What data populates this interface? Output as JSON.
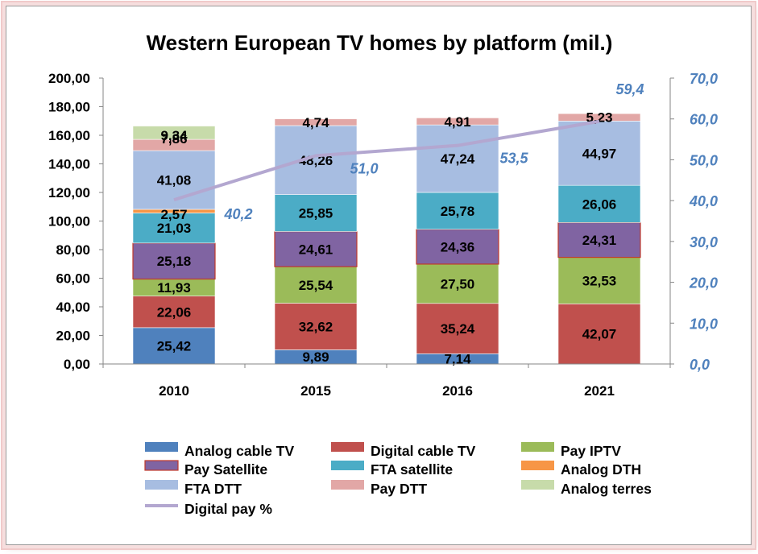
{
  "chart_data": {
    "type": "bar",
    "stacked": true,
    "title": "Western European TV homes by platform (mil.)",
    "categories": [
      "2010",
      "2015",
      "2016",
      "2021"
    ],
    "y_left": {
      "range": [
        0,
        200
      ],
      "ticks": [
        "0,00",
        "20,00",
        "40,00",
        "60,00",
        "80,00",
        "100,00",
        "120,00",
        "140,00",
        "160,00",
        "180,00",
        "200,00"
      ]
    },
    "y_right": {
      "range": [
        0,
        70
      ],
      "ticks": [
        "0,0",
        "10,0",
        "20,0",
        "30,0",
        "40,0",
        "50,0",
        "60,0",
        "70,0"
      ]
    },
    "grid": false,
    "legend_placement": "bottom",
    "series": [
      {
        "name": "Analog cable TV",
        "color": "#4f81bd",
        "values": [
          25.42,
          9.89,
          7.14,
          null
        ],
        "labels": [
          "25,42",
          "9,89",
          "7,14",
          ""
        ]
      },
      {
        "name": "Digital cable TV",
        "color": "#c0504d",
        "values": [
          22.06,
          32.62,
          35.24,
          42.07
        ],
        "labels": [
          "22,06",
          "32,62",
          "35,24",
          "42,07"
        ]
      },
      {
        "name": "Pay IPTV",
        "color": "#9bbb59",
        "values": [
          11.93,
          25.54,
          27.5,
          32.53
        ],
        "labels": [
          "11,93",
          "25,54",
          "27,50",
          "32,53"
        ]
      },
      {
        "name": "Pay Satellite",
        "color": "#8064a2",
        "border": "#c0392b",
        "values": [
          25.18,
          24.61,
          24.36,
          24.31
        ],
        "labels": [
          "25,18",
          "24,61",
          "24,36",
          "24,31"
        ]
      },
      {
        "name": "FTA satellite",
        "color": "#4bacc6",
        "values": [
          21.03,
          25.85,
          25.78,
          26.06
        ],
        "labels": [
          "21,03",
          "25,85",
          "25,78",
          "26,06"
        ]
      },
      {
        "name": "Analog DTH",
        "color": "#f79646",
        "values": [
          2.57,
          null,
          null,
          null
        ],
        "labels": [
          "2,57",
          "",
          "",
          ""
        ]
      },
      {
        "name": "FTA DTT",
        "color": "#a7bde1",
        "values": [
          41.08,
          48.26,
          47.24,
          44.97
        ],
        "labels": [
          "41,08",
          "48,26",
          "47,24",
          "44,97"
        ]
      },
      {
        "name": "Pay DTT",
        "color": "#e2a7a6",
        "values": [
          7.86,
          4.74,
          4.91,
          5.23
        ],
        "labels": [
          "7,86",
          "4,74",
          "4,91",
          "5,23"
        ]
      },
      {
        "name": "Analog terres",
        "color": "#c7dbaa",
        "values": [
          9.34,
          null,
          null,
          null
        ],
        "labels": [
          "9,34",
          "",
          "",
          ""
        ]
      }
    ],
    "line_series": {
      "name": "Digital pay %",
      "axis": "right",
      "color": "#b3a7d0",
      "values": [
        40.2,
        51.0,
        53.5,
        59.4
      ],
      "labels": [
        "40,2",
        "51,0",
        "53,5",
        "59,4"
      ]
    }
  }
}
